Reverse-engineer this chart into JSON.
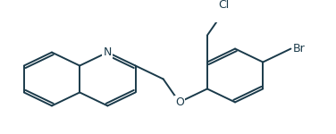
{
  "bg_color": "#ffffff",
  "line_color": "#1a3a4a",
  "text_color": "#1a3a4a",
  "line_width": 1.4,
  "font_size": 8.5,
  "N_label": "N",
  "O_label": "O",
  "Br_label": "Br",
  "Cl_label": "Cl",
  "figsize": [
    3.76,
    1.5
  ],
  "dpi": 100
}
